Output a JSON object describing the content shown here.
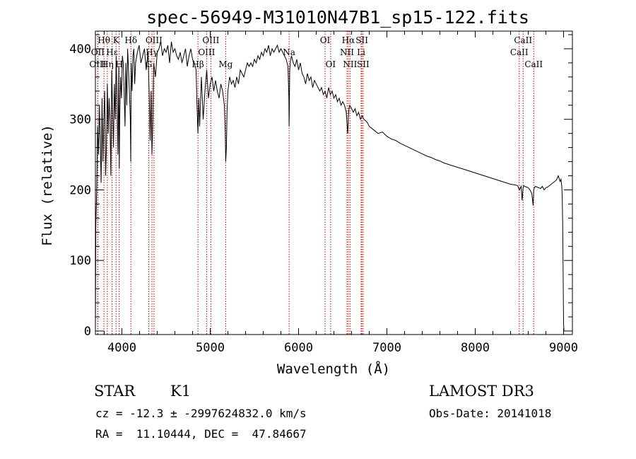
{
  "chart_data": {
    "type": "line",
    "title": "spec-56949-M31010N47B1_sp15-122.fits",
    "xlabel": "Wavelength (Å)",
    "ylabel": "Flux (relative)",
    "xlim": [
      3700,
      9100
    ],
    "ylim": [
      -5,
      425
    ],
    "xticks": [
      4000,
      5000,
      6000,
      7000,
      8000,
      9000
    ],
    "xtick_labels": [
      "4000",
      "5000",
      "6000",
      "7000",
      "8000",
      "9000"
    ],
    "yticks": [
      0,
      100,
      200,
      300,
      400
    ],
    "ytick_labels": [
      "0",
      "100",
      "200",
      "300",
      "400"
    ],
    "grid": false,
    "line_color": "#000000",
    "marker_color": "#cc0000",
    "series": [
      {
        "name": "flux",
        "x": [
          3700,
          3705,
          3715,
          3725,
          3735,
          3745,
          3755,
          3765,
          3775,
          3785,
          3795,
          3805,
          3815,
          3825,
          3835,
          3845,
          3855,
          3865,
          3875,
          3885,
          3895,
          3905,
          3915,
          3925,
          3935,
          3945,
          3955,
          3965,
          3970,
          3975,
          3985,
          3995,
          4005,
          4015,
          4025,
          4035,
          4045,
          4055,
          4065,
          4075,
          4085,
          4095,
          4100,
          4105,
          4115,
          4125,
          4135,
          4145,
          4155,
          4175,
          4195,
          4215,
          4235,
          4255,
          4275,
          4295,
          4310,
          4320,
          4330,
          4340,
          4350,
          4360,
          4380,
          4400,
          4420,
          4440,
          4460,
          4480,
          4500,
          4520,
          4540,
          4560,
          4580,
          4600,
          4620,
          4640,
          4660,
          4680,
          4700,
          4720,
          4740,
          4760,
          4780,
          4800,
          4820,
          4840,
          4850,
          4861,
          4870,
          4880,
          4900,
          4920,
          4940,
          4960,
          4980,
          5000,
          5020,
          5040,
          5060,
          5080,
          5100,
          5120,
          5140,
          5160,
          5170,
          5175,
          5183,
          5190,
          5200,
          5220,
          5240,
          5260,
          5280,
          5300,
          5320,
          5340,
          5360,
          5380,
          5400,
          5420,
          5440,
          5460,
          5480,
          5500,
          5520,
          5540,
          5560,
          5580,
          5600,
          5620,
          5640,
          5660,
          5680,
          5700,
          5720,
          5740,
          5760,
          5780,
          5800,
          5820,
          5840,
          5860,
          5880,
          5890,
          5893,
          5896,
          5900,
          5910,
          5920,
          5940,
          5960,
          5980,
          6000,
          6020,
          6040,
          6060,
          6080,
          6100,
          6120,
          6140,
          6160,
          6180,
          6200,
          6220,
          6240,
          6260,
          6280,
          6300,
          6320,
          6340,
          6360,
          6380,
          6400,
          6420,
          6440,
          6460,
          6480,
          6500,
          6520,
          6540,
          6555,
          6563,
          6570,
          6580,
          6600,
          6620,
          6640,
          6660,
          6680,
          6700,
          6720,
          6740,
          6760,
          6780,
          6800,
          6850,
          6900,
          6950,
          7000,
          7050,
          7100,
          7150,
          7200,
          7250,
          7300,
          7350,
          7400,
          7450,
          7500,
          7550,
          7600,
          7650,
          7700,
          7750,
          7800,
          7850,
          7900,
          7950,
          8000,
          8050,
          8100,
          8150,
          8200,
          8250,
          8300,
          8350,
          8400,
          8450,
          8480,
          8500,
          8520,
          8530,
          8542,
          8550,
          8560,
          8580,
          8600,
          8620,
          8640,
          8655,
          8662,
          8670,
          8680,
          8700,
          8720,
          8740,
          8760,
          8780,
          8800,
          8820,
          8840,
          8860,
          8880,
          8900,
          8920,
          8940,
          8960,
          8970,
          8980,
          8985,
          8990,
          8995,
          9000,
          9005
        ],
        "values": [
          0,
          150,
          200,
          290,
          250,
          320,
          270,
          210,
          330,
          240,
          300,
          340,
          220,
          260,
          350,
          280,
          330,
          300,
          220,
          370,
          310,
          260,
          350,
          300,
          390,
          330,
          250,
          375,
          230,
          300,
          360,
          330,
          390,
          380,
          340,
          290,
          380,
          320,
          400,
          370,
          340,
          300,
          240,
          380,
          340,
          390,
          400,
          350,
          380,
          395,
          405,
          380,
          390,
          400,
          370,
          395,
          330,
          270,
          340,
          250,
          300,
          380,
          360,
          395,
          400,
          410,
          390,
          400,
          395,
          405,
          380,
          410,
          395,
          400,
          390,
          385,
          395,
          380,
          390,
          400,
          375,
          390,
          400,
          385,
          380,
          370,
          320,
          280,
          330,
          290,
          360,
          300,
          340,
          370,
          330,
          350,
          360,
          340,
          355,
          340,
          330,
          350,
          340,
          320,
          280,
          240,
          260,
          310,
          340,
          360,
          350,
          355,
          345,
          360,
          350,
          370,
          365,
          360,
          370,
          380,
          375,
          380,
          375,
          385,
          380,
          390,
          385,
          395,
          390,
          400,
          395,
          405,
          390,
          400,
          395,
          400,
          405,
          395,
          400,
          395,
          390,
          385,
          375,
          330,
          290,
          320,
          370,
          385,
          390,
          380,
          375,
          385,
          370,
          380,
          365,
          360,
          350,
          365,
          355,
          360,
          345,
          355,
          350,
          345,
          340,
          345,
          335,
          340,
          330,
          345,
          335,
          340,
          330,
          335,
          325,
          330,
          320,
          325,
          320,
          310,
          280,
          300,
          315,
          320,
          315,
          310,
          315,
          305,
          310,
          300,
          305,
          300,
          298,
          295,
          290,
          285,
          280,
          282,
          276,
          272,
          270,
          266,
          263,
          260,
          257,
          254,
          251,
          248,
          246,
          243,
          241,
          238,
          236,
          234,
          232,
          230,
          228,
          226,
          224,
          222,
          220,
          218,
          216,
          214,
          212,
          210,
          208,
          207,
          206,
          200,
          205,
          185,
          204,
          206,
          205,
          204,
          203,
          200,
          195,
          178,
          200,
          203,
          205,
          204,
          203,
          202,
          205,
          200,
          203,
          204,
          206,
          208,
          210,
          212,
          214,
          220,
          212,
          215,
          205,
          190,
          150,
          80,
          10,
          0
        ]
      }
    ],
    "lines": [
      {
        "name": "Hθ",
        "wl": 3797,
        "row": 1
      },
      {
        "name": "OII",
        "wl": 3727,
        "row": 2
      },
      {
        "name": "OIII",
        "wl": 3727,
        "row": 3
      },
      {
        "name": "K",
        "wl": 3934,
        "row": 1
      },
      {
        "name": "Hη",
        "wl": 3835,
        "row": 3
      },
      {
        "name": "Hε",
        "wl": 3889,
        "row": 2
      },
      {
        "name": "H",
        "wl": 3969,
        "row": 3
      },
      {
        "name": "Hδ",
        "wl": 4102,
        "row": 1
      },
      {
        "name": "OIII",
        "wl": 4363,
        "row": 1
      },
      {
        "name": "Hγ",
        "wl": 4340,
        "row": 2
      },
      {
        "name": "G",
        "wl": 4304,
        "row": 3
      },
      {
        "name": "OIII",
        "wl": 5007,
        "row": 1
      },
      {
        "name": "OIII",
        "wl": 4959,
        "row": 2
      },
      {
        "name": "Hβ",
        "wl": 4861,
        "row": 3
      },
      {
        "name": "Mg",
        "wl": 5175,
        "row": 3
      },
      {
        "name": "Na",
        "wl": 5893,
        "row": 2
      },
      {
        "name": "OI",
        "wl": 6300,
        "row": 1
      },
      {
        "name": "OI",
        "wl": 6363,
        "row": 3
      },
      {
        "name": "Hα",
        "wl": 6563,
        "row": 1
      },
      {
        "name": "NII",
        "wl": 6548,
        "row": 2
      },
      {
        "name": "NII",
        "wl": 6583,
        "row": 3
      },
      {
        "name": "SII",
        "wl": 6717,
        "row": 1
      },
      {
        "name": "Li",
        "wl": 6708,
        "row": 2
      },
      {
        "name": "SII",
        "wl": 6731,
        "row": 3
      },
      {
        "name": "CaII",
        "wl": 8542,
        "row": 1
      },
      {
        "name": "CaII",
        "wl": 8498,
        "row": 2
      },
      {
        "name": "CaII",
        "wl": 8662,
        "row": 3
      }
    ]
  },
  "info": {
    "object_class": "STAR",
    "subclass": "K1",
    "survey": "LAMOST DR3",
    "redshift": "cz = -12.3 ± -2997624832.0 km/s",
    "obs_date": "Obs-Date: 20141018",
    "coords": "RA =  11.10444, DEC =  47.84667"
  }
}
